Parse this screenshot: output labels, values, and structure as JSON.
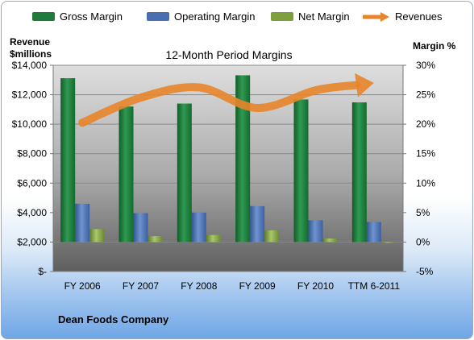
{
  "chart_data": {
    "type": "bar",
    "title": "12-Month Period Margins",
    "categories": [
      "FY 2006",
      "FY 2007",
      "FY 2008",
      "FY 2009",
      "FY 2010",
      "TTM 6-2011"
    ],
    "left_axis": {
      "label_line1": "Revenue",
      "label_line2": "$millions",
      "ylim": [
        0,
        14000
      ],
      "ticks": [
        0,
        2000,
        4000,
        6000,
        8000,
        10000,
        12000,
        14000
      ],
      "tick_labels": [
        "$-",
        "$2,000",
        "$4,000",
        "$6,000",
        "$8,000",
        "$10,000",
        "$12,000",
        "$14,000"
      ]
    },
    "right_axis": {
      "label": "Margin %",
      "ylim": [
        -5,
        30
      ],
      "ticks": [
        -5,
        0,
        5,
        10,
        15,
        20,
        25,
        30
      ],
      "tick_labels": [
        "-5%",
        "0%",
        "5%",
        "10%",
        "15%",
        "20%",
        "25%",
        "30%"
      ]
    },
    "series": [
      {
        "name": "Gross Margin",
        "axis": "right",
        "values": [
          27.8,
          23.0,
          23.5,
          28.3,
          24.2,
          23.7
        ],
        "color": "#1f7a3c"
      },
      {
        "name": "Operating Margin",
        "axis": "right",
        "values": [
          6.5,
          4.9,
          5.0,
          6.1,
          3.7,
          3.4
        ],
        "color": "#4a6fb0"
      },
      {
        "name": "Net Margin",
        "axis": "right",
        "values": [
          2.2,
          1.0,
          1.2,
          2.0,
          0.6,
          -0.1
        ],
        "color": "#7f9f3f"
      },
      {
        "name": "Revenues",
        "axis": "left",
        "type": "line",
        "values": [
          10100,
          11800,
          12500,
          11100,
          12300,
          12800
        ],
        "color": "#e8852a"
      }
    ],
    "grid": true,
    "legend_position": "top"
  },
  "footer": {
    "company": "Dean Foods Company"
  }
}
